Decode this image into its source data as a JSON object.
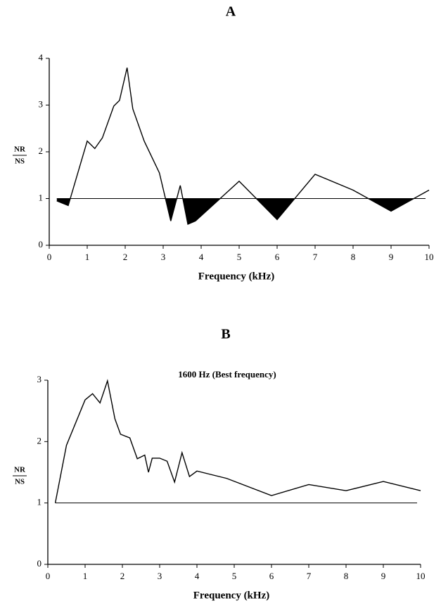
{
  "chart_data": [
    {
      "type": "line",
      "title": "A",
      "xlabel": "Frequency (kHz)",
      "ylabel": [
        "NR",
        "NS"
      ],
      "x": [
        0.2,
        0.5,
        1.0,
        1.2,
        1.4,
        1.7,
        1.85,
        2.05,
        2.2,
        2.5,
        2.9,
        3.2,
        3.45,
        3.65,
        3.85,
        4.5,
        5.0,
        6.0,
        7.0,
        8.0,
        9.0,
        10.0
      ],
      "values": [
        0.95,
        0.85,
        2.23,
        2.07,
        2.3,
        2.98,
        3.1,
        3.8,
        2.92,
        2.23,
        1.55,
        0.52,
        1.28,
        0.45,
        0.52,
        1.0,
        1.37,
        0.55,
        1.52,
        1.18,
        0.73,
        1.18
      ],
      "color": "#000000",
      "reference_line": 1,
      "shade_below_reference": true,
      "xlim": [
        0,
        10
      ],
      "ylim": [
        0,
        4
      ],
      "xticks": [
        0,
        1,
        2,
        3,
        4,
        5,
        6,
        7,
        8,
        9,
        10
      ],
      "yticks": [
        0,
        1,
        2,
        3,
        4
      ]
    },
    {
      "type": "line",
      "title": "B",
      "subtitle": "1600 Hz (Best frequency)",
      "xlabel": "Frequency (kHz)",
      "ylabel": [
        "NR",
        "NS"
      ],
      "x": [
        0.2,
        0.5,
        1.0,
        1.2,
        1.4,
        1.6,
        1.8,
        1.95,
        2.2,
        2.4,
        2.6,
        2.7,
        2.8,
        3.0,
        3.2,
        3.4,
        3.6,
        3.8,
        4.0,
        4.8,
        6.0,
        7.0,
        8.0,
        9.0,
        10.0
      ],
      "values": [
        1.0,
        1.94,
        2.68,
        2.78,
        2.63,
        2.99,
        2.37,
        2.12,
        2.06,
        1.72,
        1.78,
        1.5,
        1.73,
        1.73,
        1.68,
        1.34,
        1.82,
        1.43,
        1.52,
        1.4,
        1.12,
        1.3,
        1.2,
        1.35,
        1.2
      ],
      "color": "#000000",
      "reference_line": 1,
      "shade_below_reference": false,
      "xlim": [
        0,
        10
      ],
      "ylim": [
        0,
        3
      ],
      "xticks": [
        0,
        1,
        2,
        3,
        4,
        5,
        6,
        7,
        8,
        9,
        10
      ],
      "yticks": [
        0,
        1,
        2,
        3
      ]
    }
  ]
}
